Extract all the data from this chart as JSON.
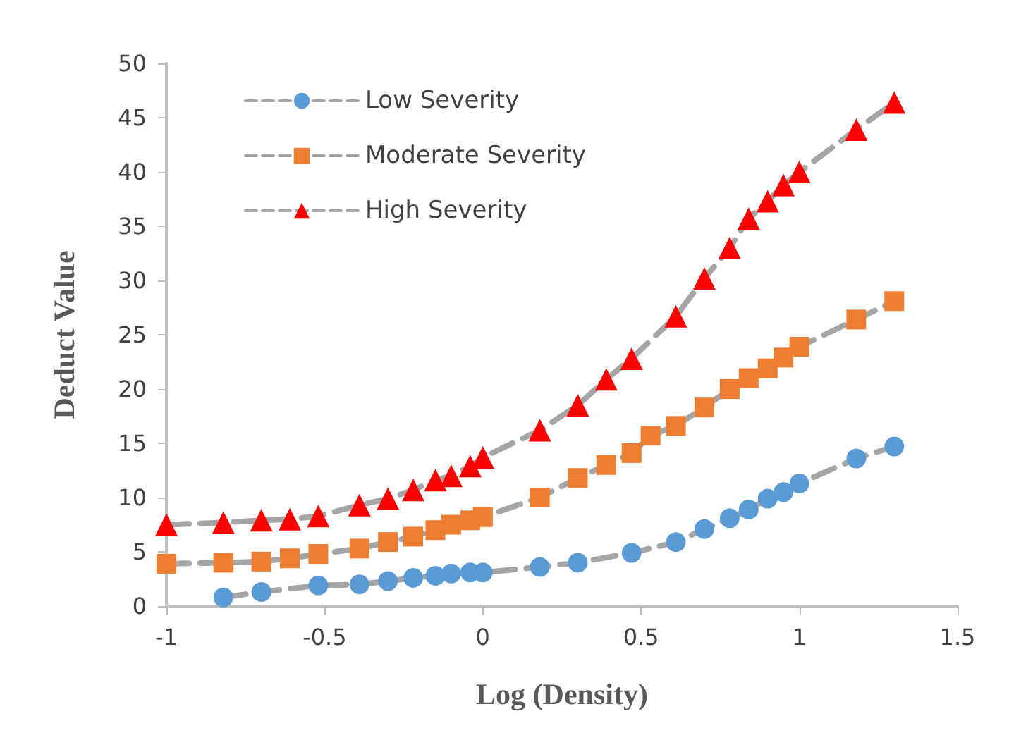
{
  "chart_data": {
    "type": "line",
    "xlabel": "Log (Density)",
    "ylabel": "Deduct Value",
    "xlim": [
      -1,
      1.5
    ],
    "xticks": [
      -1,
      -0.5,
      0,
      0.5,
      1,
      1.5
    ],
    "ylim": [
      0,
      50
    ],
    "yticks": [
      0,
      5,
      10,
      15,
      20,
      25,
      30,
      35,
      40,
      45,
      50
    ],
    "grid": false,
    "legend": "top left",
    "line_style": "dashed",
    "series": [
      {
        "name": "Low Severity",
        "color": "#5b9bd5",
        "marker": "circle",
        "x": [
          -0.82,
          -0.7,
          -0.52,
          -0.39,
          -0.3,
          -0.22,
          -0.15,
          -0.1,
          -0.04,
          0,
          0.18,
          0.3,
          0.47,
          0.61,
          0.7,
          0.78,
          0.84,
          0.9,
          0.95,
          1,
          1.18,
          1.3
        ],
        "values": [
          0.8,
          1.3,
          1.9,
          2.0,
          2.3,
          2.6,
          2.8,
          3.0,
          3.1,
          3.1,
          3.6,
          4.0,
          4.9,
          5.9,
          7.1,
          8.1,
          8.9,
          9.9,
          10.5,
          11.3,
          13.6,
          14.7
        ]
      },
      {
        "name": "Moderate Severity",
        "color": "#ed7d31",
        "marker": "square",
        "x": [
          -1,
          -0.82,
          -0.7,
          -0.61,
          -0.52,
          -0.39,
          -0.3,
          -0.22,
          -0.15,
          -0.1,
          -0.04,
          0,
          0.18,
          0.3,
          0.39,
          0.47,
          0.53,
          0.61,
          0.7,
          0.78,
          0.84,
          0.9,
          0.95,
          1,
          1.18,
          1.3
        ],
        "values": [
          3.9,
          4.0,
          4.1,
          4.4,
          4.8,
          5.3,
          5.9,
          6.4,
          7.0,
          7.5,
          7.9,
          8.2,
          10.0,
          11.8,
          13.0,
          14.1,
          15.7,
          16.6,
          18.3,
          20.0,
          21.0,
          21.9,
          22.9,
          23.9,
          26.4,
          28.1
        ]
      },
      {
        "name": "High Severity",
        "color": "#ff0000",
        "marker": "triangle",
        "x": [
          -1,
          -0.82,
          -0.7,
          -0.61,
          -0.52,
          -0.39,
          -0.3,
          -0.22,
          -0.15,
          -0.1,
          -0.04,
          0,
          0.18,
          0.3,
          0.39,
          0.47,
          0.61,
          0.7,
          0.78,
          0.84,
          0.9,
          0.95,
          1,
          1.18,
          1.3
        ],
        "values": [
          7.5,
          7.7,
          7.9,
          8.0,
          8.3,
          9.3,
          9.9,
          10.7,
          11.6,
          12.0,
          12.9,
          13.7,
          16.2,
          18.5,
          20.9,
          22.8,
          26.7,
          30.2,
          33.0,
          35.7,
          37.3,
          38.8,
          40.0,
          43.9,
          46.4
        ]
      }
    ]
  }
}
